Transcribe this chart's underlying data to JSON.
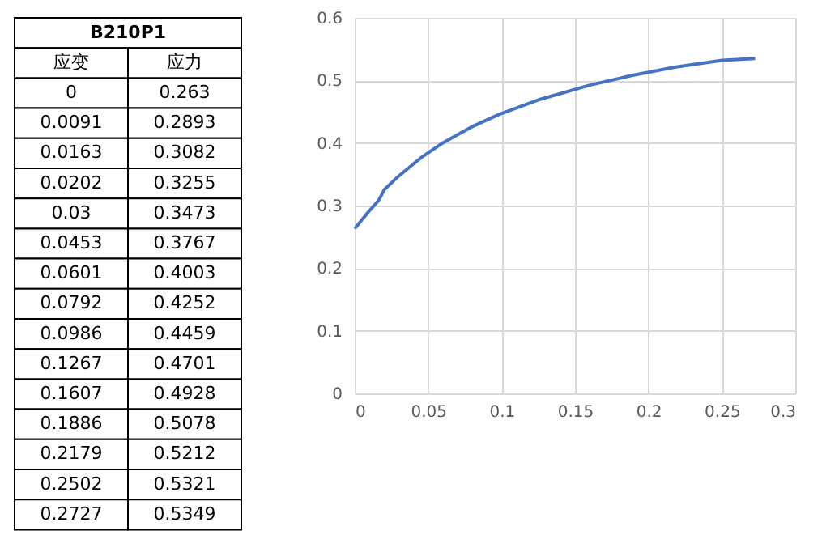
{
  "chart_data": [
    {
      "type": "other",
      "title": "B210P1",
      "annotations": [
        "应变",
        "应力",
        "0",
        "0.263",
        "0.0091",
        "0.2893",
        "0.0163",
        "0.3082",
        "0.0202",
        "0.3255",
        "0.03",
        "0.3473",
        "0.0453",
        "0.3767",
        "0.0601",
        "0.4003",
        "0.0792",
        "0.4252",
        "0.0986",
        "0.4459",
        "0.1267",
        "0.4701",
        "0.1607",
        "0.4928",
        "0.1886",
        "0.5078",
        "0.2179",
        "0.5212",
        "0.2502",
        "0.5321",
        "0.2727",
        "0.5349"
      ]
    },
    {
      "type": "line",
      "x": [
        0,
        0.0091,
        0.0163,
        0.0202,
        0.03,
        0.0453,
        0.0601,
        0.0792,
        0.0986,
        0.1267,
        0.1607,
        0.1886,
        0.2179,
        0.2502,
        0.2727
      ],
      "series": [
        {
          "color": "#4472c4",
          "values": [
            0.263,
            0.2893,
            0.3082,
            0.3255,
            0.3473,
            0.3767,
            0.4003,
            0.4252,
            0.4459,
            0.4701,
            0.4928,
            0.5078,
            0.5212,
            0.5321,
            0.5349
          ]
        }
      ],
      "xlim": [
        0,
        0.3
      ],
      "xticks": [
        0,
        0.05,
        0.1,
        0.15,
        0.2,
        0.25,
        0.3
      ],
      "ylim": [
        0,
        0.6
      ],
      "yticks": [
        0,
        0.1,
        0.2,
        0.3,
        0.4,
        0.5,
        0.6
      ],
      "grid": true,
      "marker": "none",
      "line_style": "solid"
    }
  ]
}
